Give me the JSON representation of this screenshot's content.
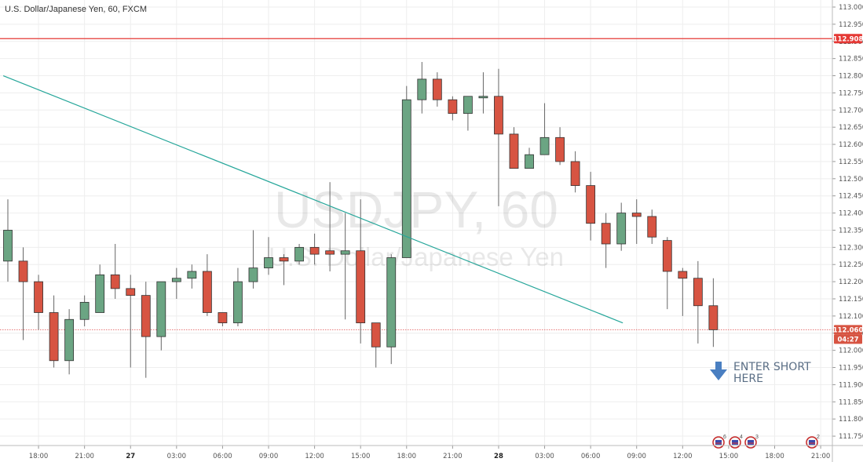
{
  "header": {
    "title": "U.S. Dollar/Japanese Yen, 60, FXCM"
  },
  "watermark": {
    "symbol": "USDJPY, 60",
    "name": "U.S. Dollar/Japanese Yen"
  },
  "colors": {
    "up": "#6ba583",
    "down": "#d75442",
    "wick": "#666666",
    "trend": "#26a69a",
    "red_line": "#e53935",
    "price_line": "#e57373",
    "note": "#4a7fc1"
  },
  "annotation": {
    "line1": "ENTER SHORT",
    "line2": "HERE"
  },
  "events": [
    {
      "count": "6"
    },
    {
      "count": "4"
    },
    {
      "count": "3"
    },
    {
      "count": "2"
    }
  ],
  "chart_data": {
    "type": "candlestick",
    "title": "U.S. Dollar/Japanese Yen, 60, FXCM",
    "ylim": [
      111.725,
      113.0
    ],
    "y_ticks": [
      "113.000",
      "112.950",
      "112.900",
      "112.850",
      "112.800",
      "112.750",
      "112.700",
      "112.650",
      "112.600",
      "112.550",
      "112.500",
      "112.450",
      "112.400",
      "112.350",
      "112.300",
      "112.250",
      "112.200",
      "112.150",
      "112.100",
      "112.050",
      "112.000",
      "111.950",
      "111.900",
      "111.850",
      "111.800",
      "111.750"
    ],
    "x_ticks": [
      "18:00",
      "21:00",
      "27",
      "03:00",
      "06:00",
      "09:00",
      "12:00",
      "15:00",
      "18:00",
      "21:00",
      "28",
      "03:00",
      "06:00",
      "09:00",
      "12:00",
      "15:00",
      "18:00",
      "21:00"
    ],
    "bold_x_ticks": [
      "27",
      "28"
    ],
    "hline_price": "112.908",
    "last_price": "112.060",
    "countdown": "04:27",
    "trendline": [
      {
        "bar": -0.3,
        "price": 112.8
      },
      {
        "bar": 40.1,
        "price": 112.08
      }
    ],
    "candles": [
      {
        "o": 112.26,
        "h": 112.44,
        "l": 112.2,
        "c": 112.35
      },
      {
        "o": 112.26,
        "h": 112.3,
        "l": 112.03,
        "c": 112.2
      },
      {
        "o": 112.2,
        "h": 112.22,
        "l": 112.06,
        "c": 112.11
      },
      {
        "o": 112.11,
        "h": 112.16,
        "l": 111.95,
        "c": 111.97
      },
      {
        "o": 111.97,
        "h": 112.12,
        "l": 111.93,
        "c": 112.09
      },
      {
        "o": 112.09,
        "h": 112.16,
        "l": 112.07,
        "c": 112.14
      },
      {
        "o": 112.11,
        "h": 112.25,
        "l": 112.11,
        "c": 112.22
      },
      {
        "o": 112.22,
        "h": 112.31,
        "l": 112.15,
        "c": 112.18
      },
      {
        "o": 112.18,
        "h": 112.22,
        "l": 111.95,
        "c": 112.16
      },
      {
        "o": 112.16,
        "h": 112.2,
        "l": 111.92,
        "c": 112.04
      },
      {
        "o": 112.04,
        "h": 112.2,
        "l": 112.0,
        "c": 112.2
      },
      {
        "o": 112.2,
        "h": 112.24,
        "l": 112.15,
        "c": 112.21
      },
      {
        "o": 112.21,
        "h": 112.25,
        "l": 112.18,
        "c": 112.23
      },
      {
        "o": 112.23,
        "h": 112.28,
        "l": 112.1,
        "c": 112.11
      },
      {
        "o": 112.11,
        "h": 112.11,
        "l": 112.07,
        "c": 112.08
      },
      {
        "o": 112.08,
        "h": 112.24,
        "l": 112.07,
        "c": 112.2
      },
      {
        "o": 112.2,
        "h": 112.35,
        "l": 112.18,
        "c": 112.24
      },
      {
        "o": 112.24,
        "h": 112.33,
        "l": 112.22,
        "c": 112.27
      },
      {
        "o": 112.27,
        "h": 112.28,
        "l": 112.19,
        "c": 112.26
      },
      {
        "o": 112.26,
        "h": 112.31,
        "l": 112.25,
        "c": 112.3
      },
      {
        "o": 112.3,
        "h": 112.34,
        "l": 112.25,
        "c": 112.28
      },
      {
        "o": 112.29,
        "h": 112.49,
        "l": 112.23,
        "c": 112.28
      },
      {
        "o": 112.28,
        "h": 112.4,
        "l": 112.09,
        "c": 112.29
      },
      {
        "o": 112.29,
        "h": 112.44,
        "l": 112.02,
        "c": 112.08
      },
      {
        "o": 112.08,
        "h": 112.08,
        "l": 111.95,
        "c": 112.01
      },
      {
        "o": 112.01,
        "h": 112.28,
        "l": 111.96,
        "c": 112.27
      },
      {
        "o": 112.27,
        "h": 112.77,
        "l": 112.27,
        "c": 112.73
      },
      {
        "o": 112.73,
        "h": 112.84,
        "l": 112.69,
        "c": 112.79
      },
      {
        "o": 112.79,
        "h": 112.81,
        "l": 112.71,
        "c": 112.73
      },
      {
        "o": 112.73,
        "h": 112.74,
        "l": 112.67,
        "c": 112.69
      },
      {
        "o": 112.69,
        "h": 112.74,
        "l": 112.64,
        "c": 112.74
      },
      {
        "o": 112.74,
        "h": 112.81,
        "l": 112.69,
        "c": 112.74
      },
      {
        "o": 112.74,
        "h": 112.82,
        "l": 112.42,
        "c": 112.63
      },
      {
        "o": 112.63,
        "h": 112.65,
        "l": 112.53,
        "c": 112.53
      },
      {
        "o": 112.53,
        "h": 112.59,
        "l": 112.53,
        "c": 112.57
      },
      {
        "o": 112.57,
        "h": 112.72,
        "l": 112.57,
        "c": 112.62
      },
      {
        "o": 112.62,
        "h": 112.65,
        "l": 112.54,
        "c": 112.55
      },
      {
        "o": 112.55,
        "h": 112.58,
        "l": 112.46,
        "c": 112.48
      },
      {
        "o": 112.48,
        "h": 112.52,
        "l": 112.32,
        "c": 112.37
      },
      {
        "o": 112.37,
        "h": 112.4,
        "l": 112.24,
        "c": 112.31
      },
      {
        "o": 112.31,
        "h": 112.43,
        "l": 112.29,
        "c": 112.4
      },
      {
        "o": 112.4,
        "h": 112.44,
        "l": 112.31,
        "c": 112.39
      },
      {
        "o": 112.39,
        "h": 112.41,
        "l": 112.31,
        "c": 112.33
      },
      {
        "o": 112.32,
        "h": 112.33,
        "l": 112.12,
        "c": 112.23
      },
      {
        "o": 112.23,
        "h": 112.24,
        "l": 112.1,
        "c": 112.21
      },
      {
        "o": 112.21,
        "h": 112.26,
        "l": 112.02,
        "c": 112.13
      },
      {
        "o": 112.13,
        "h": 112.21,
        "l": 112.01,
        "c": 112.06
      }
    ]
  }
}
